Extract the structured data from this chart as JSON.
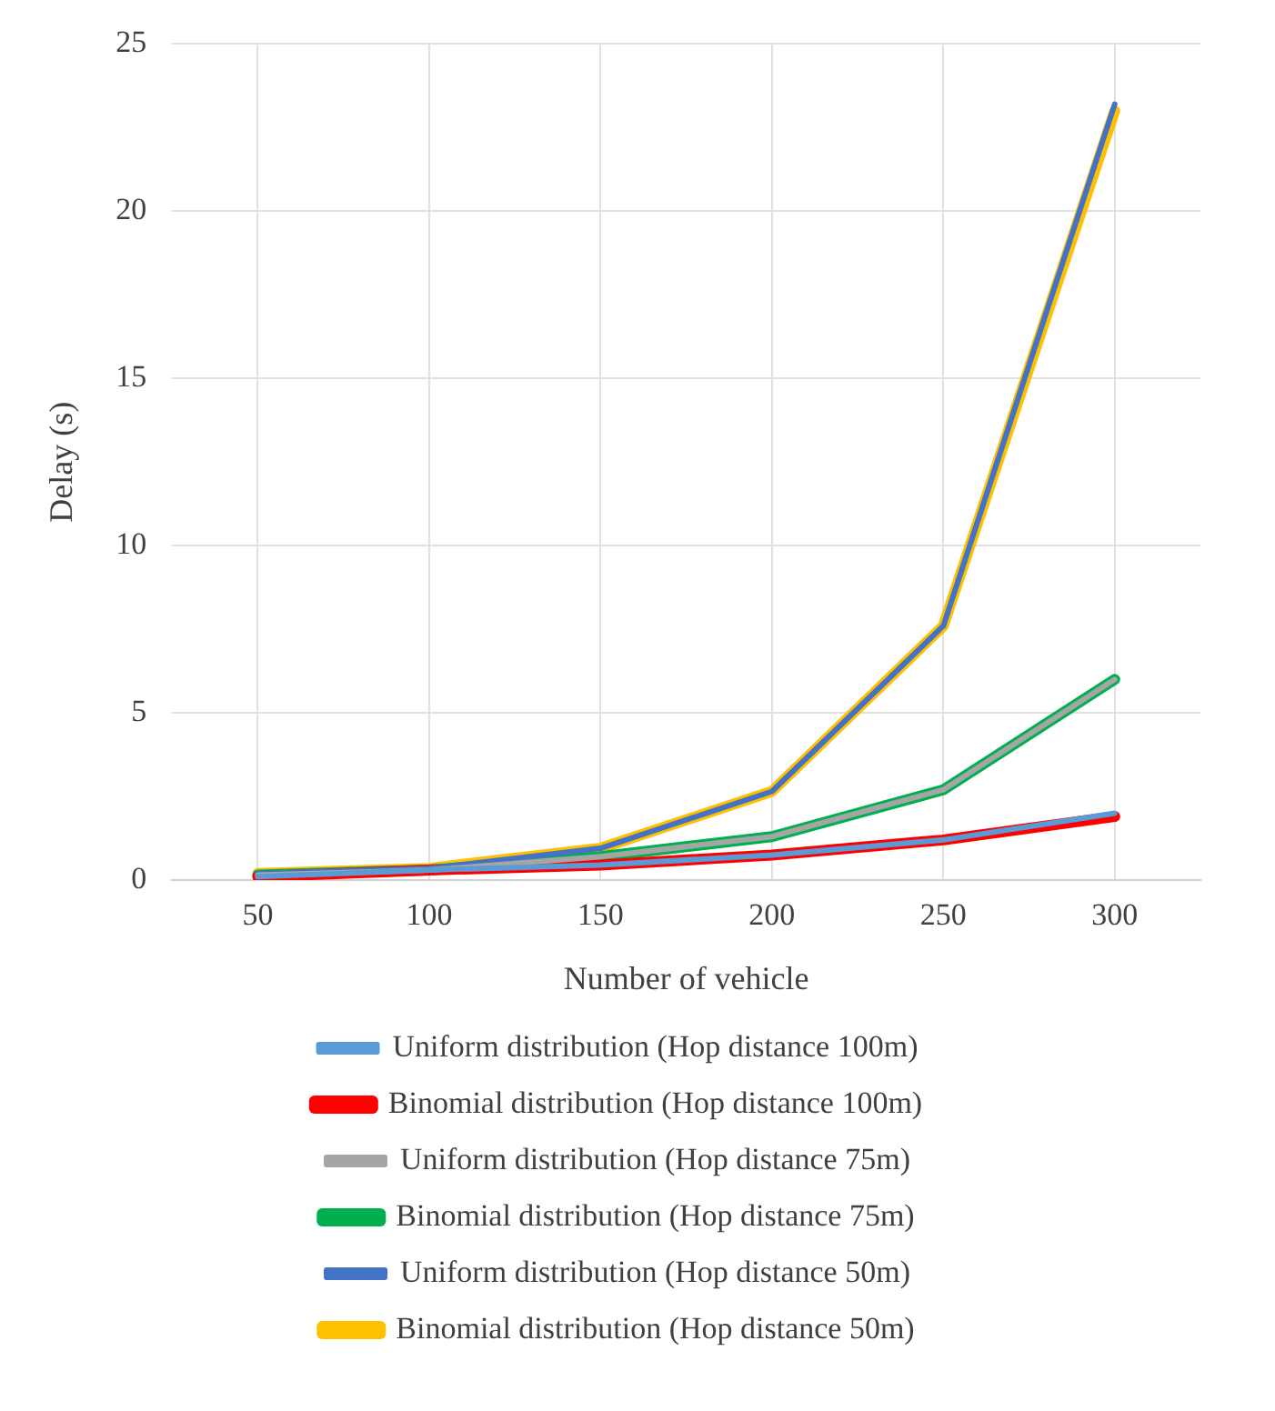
{
  "chart_data": {
    "type": "line",
    "xlabel": "Number of vehicle",
    "ylabel": "Delay (s)",
    "categories": [
      "50",
      "100",
      "150",
      "200",
      "250",
      "300"
    ],
    "series": [
      {
        "name": "Uniform distribution (Hop distance 100m)",
        "color": "#5b9bd5",
        "values": [
          0.1,
          0.3,
          0.45,
          0.75,
          1.2,
          2.0
        ]
      },
      {
        "name": "Binomial distribution (Hop distance 100m)",
        "color": "#ff0000",
        "values": [
          0.1,
          0.3,
          0.45,
          0.75,
          1.2,
          1.9
        ]
      },
      {
        "name": "Uniform distribution (Hop distance 75m)",
        "color": "#a5a5a5",
        "values": [
          0.15,
          0.3,
          0.7,
          1.3,
          2.7,
          6.0
        ]
      },
      {
        "name": "Binomial distribution (Hop distance 75m)",
        "color": "#00b050",
        "values": [
          0.15,
          0.3,
          0.7,
          1.3,
          2.7,
          6.0
        ]
      },
      {
        "name": "Uniform distribution (Hop distance 50m)",
        "color": "#4472c4",
        "values": [
          0.2,
          0.35,
          0.95,
          2.65,
          7.6,
          23.2
        ]
      },
      {
        "name": "Binomial distribution (Hop distance 50m)",
        "color": "#ffc000",
        "values": [
          0.2,
          0.35,
          0.95,
          2.65,
          7.6,
          23.0
        ]
      }
    ],
    "ylim": [
      0,
      25
    ],
    "yticks": [
      0,
      5,
      10,
      15,
      20,
      25
    ],
    "grid": true,
    "legend": "bottom",
    "marker": "none",
    "line_style": "solid"
  }
}
